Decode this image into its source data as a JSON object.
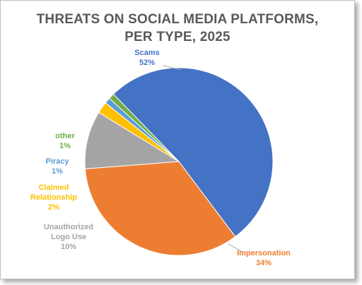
{
  "chart_data": {
    "type": "pie",
    "title_lines": [
      "THREATS ON SOCIAL MEDIA PLATFORMS,",
      "PER TYPE, 2025"
    ],
    "slices": [
      {
        "label": "Scams",
        "value": 52,
        "display": "52%",
        "color": "#4472c4"
      },
      {
        "label": "Impersonation",
        "value": 34,
        "display": "34%",
        "color": "#ed7d31"
      },
      {
        "label": "Unauthorized Logo Use",
        "label_lines": [
          "Unauthorized",
          "Logo Use"
        ],
        "value": 10,
        "display": "10%",
        "color": "#a5a5a5"
      },
      {
        "label": "Claimed Relationship",
        "label_lines": [
          "Claimed",
          "Relationship"
        ],
        "value": 2,
        "display": "2%",
        "color": "#ffc000"
      },
      {
        "label": "Piracy",
        "value": 1,
        "display": "1%",
        "color": "#5b9bd5"
      },
      {
        "label": "other",
        "value": 1,
        "display": "1%",
        "color": "#70ad47"
      }
    ]
  }
}
